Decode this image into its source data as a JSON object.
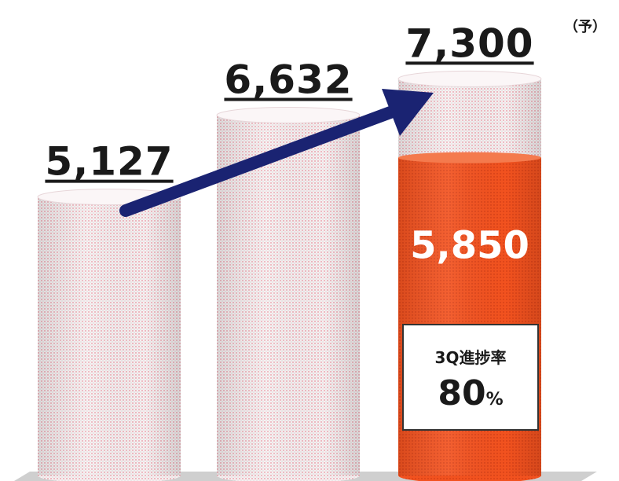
{
  "chart_data": {
    "type": "bar",
    "categories": [
      "",
      "",
      ""
    ],
    "values": [
      5127,
      6632,
      7300
    ],
    "value_labels": [
      "5,127",
      "6,632",
      "7,300"
    ],
    "forecast_mark": "（予）",
    "forecast_index": 2,
    "actual_to_date": {
      "value": 5850,
      "label": "5,850",
      "bar_index": 2
    },
    "progress": {
      "title": "3Q進捗率",
      "value": "80",
      "unit": "%",
      "ratio": 0.8
    },
    "title": "",
    "xlabel": "",
    "ylabel": "",
    "ylim": [
      0,
      7450
    ],
    "grid": false,
    "legend": "none",
    "colors": {
      "bar_fill": "#f7f1f2",
      "bar_dots": "#e06a7a",
      "actual_fill": "#f2521f",
      "actual_dots": "#c23412",
      "arrow": "#1a2372"
    }
  }
}
